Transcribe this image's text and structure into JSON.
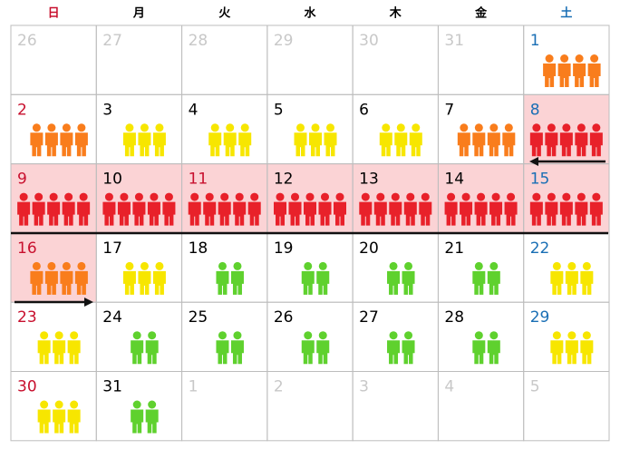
{
  "calendar": {
    "weekdays": [
      {
        "label": "日",
        "color": "#c8102e"
      },
      {
        "label": "月",
        "color": "#000000"
      },
      {
        "label": "火",
        "color": "#000000"
      },
      {
        "label": "水",
        "color": "#000000"
      },
      {
        "label": "木",
        "color": "#000000"
      },
      {
        "label": "金",
        "color": "#000000"
      },
      {
        "label": "土",
        "color": "#1a6fb5"
      }
    ],
    "day_colors": {
      "muted": "#c8c8c8",
      "normal": "#000000",
      "holiday": "#c8102e",
      "saturday": "#1a6fb5"
    },
    "highlight_color": "#fbd3d5",
    "weeks": [
      [
        {
          "day": 26,
          "style": "muted"
        },
        {
          "day": 27,
          "style": "muted"
        },
        {
          "day": 28,
          "style": "muted"
        },
        {
          "day": 29,
          "style": "muted"
        },
        {
          "day": 30,
          "style": "muted"
        },
        {
          "day": 31,
          "style": "muted"
        },
        {
          "day": 1,
          "style": "saturday",
          "people": 4,
          "color": "#f97d1c"
        }
      ],
      [
        {
          "day": 2,
          "style": "holiday",
          "people": 4,
          "color": "#f97d1c"
        },
        {
          "day": 3,
          "style": "normal",
          "people": 3,
          "color": "#f7e600"
        },
        {
          "day": 4,
          "style": "normal",
          "people": 3,
          "color": "#f7e600"
        },
        {
          "day": 5,
          "style": "normal",
          "people": 3,
          "color": "#f7e600"
        },
        {
          "day": 6,
          "style": "normal",
          "people": 3,
          "color": "#f7e600"
        },
        {
          "day": 7,
          "style": "normal",
          "people": 4,
          "color": "#f97d1c"
        },
        {
          "day": 8,
          "style": "saturday",
          "people": 5,
          "color": "#e8212a",
          "highlight": true
        }
      ],
      [
        {
          "day": 9,
          "style": "holiday",
          "people": 5,
          "color": "#e8212a",
          "highlight": true
        },
        {
          "day": 10,
          "style": "normal",
          "people": 5,
          "color": "#e8212a",
          "highlight": true
        },
        {
          "day": 11,
          "style": "holiday",
          "people": 5,
          "color": "#e8212a",
          "highlight": true
        },
        {
          "day": 12,
          "style": "normal",
          "people": 5,
          "color": "#e8212a",
          "highlight": true
        },
        {
          "day": 13,
          "style": "normal",
          "people": 5,
          "color": "#e8212a",
          "highlight": true
        },
        {
          "day": 14,
          "style": "normal",
          "people": 5,
          "color": "#e8212a",
          "highlight": true
        },
        {
          "day": 15,
          "style": "saturday",
          "people": 5,
          "color": "#e8212a",
          "highlight": true
        }
      ],
      [
        {
          "day": 16,
          "style": "holiday",
          "people": 4,
          "color": "#f97d1c",
          "highlight": true
        },
        {
          "day": 17,
          "style": "normal",
          "people": 3,
          "color": "#f7e600"
        },
        {
          "day": 18,
          "style": "normal",
          "people": 2,
          "color": "#5fd12e"
        },
        {
          "day": 19,
          "style": "normal",
          "people": 2,
          "color": "#5fd12e"
        },
        {
          "day": 20,
          "style": "normal",
          "people": 2,
          "color": "#5fd12e"
        },
        {
          "day": 21,
          "style": "normal",
          "people": 2,
          "color": "#5fd12e"
        },
        {
          "day": 22,
          "style": "saturday",
          "people": 3,
          "color": "#f7e600"
        }
      ],
      [
        {
          "day": 23,
          "style": "holiday",
          "people": 3,
          "color": "#f7e600"
        },
        {
          "day": 24,
          "style": "normal",
          "people": 2,
          "color": "#5fd12e"
        },
        {
          "day": 25,
          "style": "normal",
          "people": 2,
          "color": "#5fd12e"
        },
        {
          "day": 26,
          "style": "normal",
          "people": 2,
          "color": "#5fd12e"
        },
        {
          "day": 27,
          "style": "normal",
          "people": 2,
          "color": "#5fd12e"
        },
        {
          "day": 28,
          "style": "normal",
          "people": 2,
          "color": "#5fd12e"
        },
        {
          "day": 29,
          "style": "saturday",
          "people": 3,
          "color": "#f7e600"
        }
      ],
      [
        {
          "day": 30,
          "style": "holiday",
          "people": 3,
          "color": "#f7e600"
        },
        {
          "day": 31,
          "style": "normal",
          "people": 2,
          "color": "#5fd12e"
        },
        {
          "day": 1,
          "style": "muted"
        },
        {
          "day": 2,
          "style": "muted"
        },
        {
          "day": 3,
          "style": "muted"
        },
        {
          "day": 4,
          "style": "muted"
        },
        {
          "day": 5,
          "style": "muted"
        }
      ]
    ]
  }
}
